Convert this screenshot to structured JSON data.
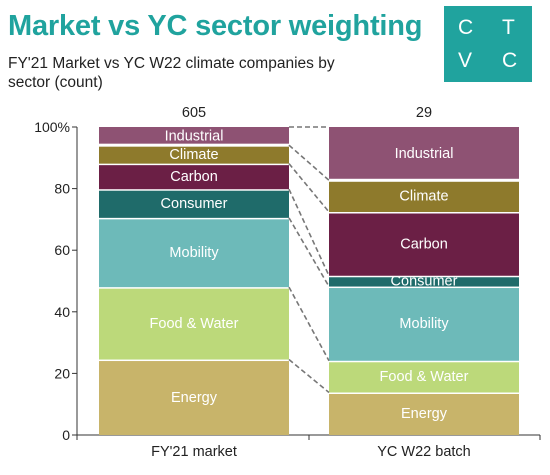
{
  "header": {
    "title": "Market vs YC sector weighting",
    "subtitle": "FY'21 Market vs YC W22 climate companies by sector (count)"
  },
  "logo": {
    "letters": [
      "C",
      "T",
      "V",
      "C"
    ],
    "color": "#20a39e"
  },
  "chart_data": {
    "type": "bar",
    "stacked": true,
    "normalized": true,
    "categories": [
      "FY'21 market",
      "YC W22 batch"
    ],
    "totals": [
      "605",
      "29"
    ],
    "ylim": [
      0,
      100
    ],
    "yticks": [
      "0",
      "20",
      "40",
      "60",
      "80",
      "100%"
    ],
    "xlabel": "",
    "ylabel": "",
    "series": [
      {
        "name": "Energy",
        "color": "#c8b46a",
        "values": [
          24.5,
          13.8
        ]
      },
      {
        "name": "Food & Water",
        "color": "#bcd97a",
        "values": [
          23.5,
          10.3
        ]
      },
      {
        "name": "Mobility",
        "color": "#6dbab9",
        "values": [
          22.5,
          24.1
        ]
      },
      {
        "name": "Consumer",
        "color": "#1f6b6a",
        "values": [
          9.3,
          3.5
        ]
      },
      {
        "name": "Carbon",
        "color": "#6b1f45",
        "values": [
          8.3,
          20.7
        ]
      },
      {
        "name": "Climate",
        "color": "#8e7a2c",
        "values": [
          6.0,
          10.3
        ]
      },
      {
        "name": "Industrial",
        "color": "#8e5273",
        "values": [
          5.9,
          17.3
        ]
      }
    ],
    "connectors": "dashed"
  }
}
